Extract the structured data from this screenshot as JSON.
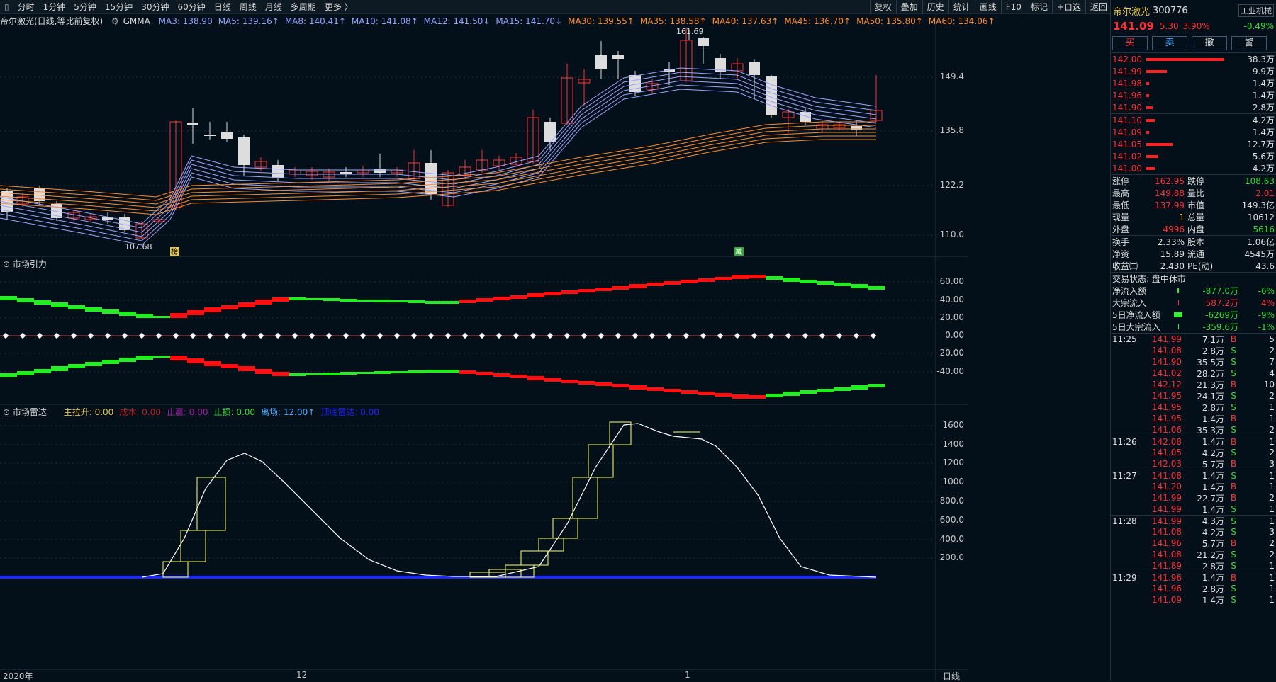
{
  "toolbar": {
    "timeframes": [
      "分时",
      "1分钟",
      "5分钟",
      "15分钟",
      "30分钟",
      "60分钟",
      "日线",
      "周线",
      "月线",
      "多周期",
      "更多 〉"
    ],
    "right_buttons": [
      "复权",
      "叠加",
      "历史",
      "统计",
      "画线",
      "F10",
      "标记",
      "+自选",
      "返回"
    ]
  },
  "legend": {
    "title": "帝尔激光(日线,等比前复权)",
    "indicator": "GMMA",
    "ma": [
      {
        "label": "MA3: 138.90",
        "color": "#8fa4ff"
      },
      {
        "label": "MA5: 139.16↑",
        "color": "#8fa4ff"
      },
      {
        "label": "MA8: 140.41↑",
        "color": "#8fa4ff"
      },
      {
        "label": "MA10: 141.08↑",
        "color": "#8fa4ff"
      },
      {
        "label": "MA12: 141.50↓",
        "color": "#8fa4ff"
      },
      {
        "label": "MA15: 141.70↓",
        "color": "#8fa4ff"
      },
      {
        "label": "MA30: 139.55↑",
        "color": "#ff8c2a"
      },
      {
        "label": "MA35: 138.58↑",
        "color": "#ff8c2a"
      },
      {
        "label": "MA40: 137.63↑",
        "color": "#ff8c2a"
      },
      {
        "label": "MA45: 136.70↑",
        "color": "#ff8c2a"
      },
      {
        "label": "MA50: 135.80↑",
        "color": "#ff8c2a"
      },
      {
        "label": "MA60: 134.06↑",
        "color": "#ff8c2a"
      }
    ]
  },
  "main_chart": {
    "y_ticks": [
      "149.4",
      "135.8",
      "122.2",
      "110.0"
    ],
    "high_label": "161.69",
    "low_label": "107.68",
    "marker_a": "榜",
    "marker_b": "减"
  },
  "panel2": {
    "title": "市场引力",
    "y_ticks": [
      "60.00",
      "40.00",
      "20.00",
      "0.00",
      "-20.00",
      "-40.00"
    ]
  },
  "panel3": {
    "title": "市场雷达",
    "items": [
      {
        "label": "主拉升: 0.00",
        "color": "#e6c44a"
      },
      {
        "label": "成本: 0.00",
        "color": "#b22222"
      },
      {
        "label": "止赢: 0.00",
        "color": "#a020a0"
      },
      {
        "label": "止损: 0.00",
        "color": "#33dd33"
      },
      {
        "label": "离场: 12.00↑",
        "color": "#4aa8ff"
      },
      {
        "label": "顶底雷达: 0.00",
        "color": "#2222ff"
      }
    ],
    "y_ticks": [
      "1600",
      "1400",
      "1200",
      "1000",
      "800.0",
      "600.0",
      "400.0",
      "200.0"
    ]
  },
  "xaxis": {
    "labels": [
      "2020年",
      "12",
      "1"
    ],
    "period": "日线"
  },
  "quote": {
    "name": "帝尔激光",
    "code": "300776",
    "sector": "工业机械",
    "price": "141.09",
    "change": "5.30",
    "pct": "3.90%",
    "sector_pct": "-0.49%",
    "buttons": [
      "买",
      "卖",
      "撤",
      "警"
    ],
    "asks": [
      {
        "p": "142.00",
        "v": "38.3万",
        "bar": 100
      },
      {
        "p": "141.99",
        "v": "9.9万",
        "bar": 26
      },
      {
        "p": "141.98",
        "v": "1.4万",
        "bar": 4
      },
      {
        "p": "141.96",
        "v": "1.4万",
        "bar": 4
      },
      {
        "p": "141.90",
        "v": "2.8万",
        "bar": 8
      }
    ],
    "bids": [
      {
        "p": "141.10",
        "v": "4.2万",
        "bar": 11
      },
      {
        "p": "141.09",
        "v": "1.4万",
        "bar": 4
      },
      {
        "p": "141.05",
        "v": "12.7万",
        "bar": 34
      },
      {
        "p": "141.02",
        "v": "5.6万",
        "bar": 15
      },
      {
        "p": "141.00",
        "v": "4.2万",
        "bar": 11
      }
    ],
    "stats": [
      [
        "涨停",
        "162.95",
        "red",
        "跌停",
        "108.63",
        "green"
      ],
      [
        "最高",
        "149.88",
        "red",
        "量比",
        "2.01",
        "red"
      ],
      [
        "最低",
        "137.99",
        "red",
        "市值",
        "149.3亿",
        "white"
      ],
      [
        "现量",
        "1",
        "yellow",
        "总量",
        "10612",
        "white"
      ],
      [
        "外盘",
        "4996",
        "red",
        "内盘",
        "5616",
        "green"
      ]
    ],
    "stats2": [
      [
        "换手",
        "2.33%",
        "股本",
        "1.06亿"
      ],
      [
        "净资",
        "15.89",
        "流通",
        "4545万"
      ],
      [
        "收益㈢",
        "2.430",
        "PE(动)",
        "43.6"
      ]
    ],
    "trade_status": "交易状态: 盘中休市",
    "flows": [
      {
        "label": "净流入额",
        "val": "-877.0万",
        "pct": "-6%",
        "c": "green",
        "bar": 2
      },
      {
        "label": "大宗流入",
        "val": "587.2万",
        "pct": "4%",
        "c": "red",
        "bar": 1
      },
      {
        "label": "5日净流入额",
        "val": "-6269万",
        "pct": "-9%",
        "c": "green",
        "bar": 12
      },
      {
        "label": "5日大宗流入",
        "val": "-359.6万",
        "pct": "-1%",
        "c": "green",
        "bar": 1
      }
    ],
    "ticks": [
      {
        "t": "11:25",
        "p": "141.99",
        "v": "7.1万",
        "bs": "B",
        "n": "5"
      },
      {
        "t": "",
        "p": "141.08",
        "v": "2.8万",
        "bs": "S",
        "n": "2"
      },
      {
        "t": "",
        "p": "141.90",
        "v": "35.5万",
        "bs": "S",
        "n": "7"
      },
      {
        "t": "",
        "p": "141.02",
        "v": "28.2万",
        "bs": "S",
        "n": "4"
      },
      {
        "t": "",
        "p": "142.12",
        "v": "21.3万",
        "bs": "B",
        "n": "10"
      },
      {
        "t": "",
        "p": "141.95",
        "v": "24.1万",
        "bs": "S",
        "n": "2"
      },
      {
        "t": "",
        "p": "141.95",
        "v": "2.8万",
        "bs": "S",
        "n": "1"
      },
      {
        "t": "",
        "p": "141.95",
        "v": "1.4万",
        "bs": "B",
        "n": "1"
      },
      {
        "t": "",
        "p": "141.06",
        "v": "35.3万",
        "bs": "S",
        "n": "2"
      },
      {
        "t": "11:26",
        "p": "142.08",
        "v": "1.4万",
        "bs": "B",
        "n": "1"
      },
      {
        "t": "",
        "p": "141.05",
        "v": "4.2万",
        "bs": "S",
        "n": "2"
      },
      {
        "t": "",
        "p": "142.03",
        "v": "5.7万",
        "bs": "B",
        "n": "3"
      },
      {
        "t": "11:27",
        "p": "141.08",
        "v": "1.4万",
        "bs": "S",
        "n": "1"
      },
      {
        "t": "",
        "p": "141.20",
        "v": "1.4万",
        "bs": "B",
        "n": "1"
      },
      {
        "t": "",
        "p": "141.99",
        "v": "22.7万",
        "bs": "B",
        "n": "2"
      },
      {
        "t": "",
        "p": "141.99",
        "v": "1.4万",
        "bs": "S",
        "n": "1"
      },
      {
        "t": "11:28",
        "p": "141.99",
        "v": "4.3万",
        "bs": "S",
        "n": "1"
      },
      {
        "t": "",
        "p": "141.08",
        "v": "4.2万",
        "bs": "S",
        "n": "3"
      },
      {
        "t": "",
        "p": "141.96",
        "v": "5.7万",
        "bs": "B",
        "n": "2"
      },
      {
        "t": "",
        "p": "141.08",
        "v": "21.2万",
        "bs": "S",
        "n": "2"
      },
      {
        "t": "",
        "p": "141.89",
        "v": "2.8万",
        "bs": "S",
        "n": "1"
      },
      {
        "t": "11:29",
        "p": "141.96",
        "v": "1.4万",
        "bs": "B",
        "n": "1"
      },
      {
        "t": "",
        "p": "141.96",
        "v": "2.8万",
        "bs": "S",
        "n": "1"
      },
      {
        "t": "",
        "p": "141.09",
        "v": "1.4万",
        "bs": "S",
        "n": "1"
      }
    ]
  },
  "colors": {
    "up": "#ff3333",
    "down": "#dddddd",
    "green": "#33ee33",
    "bg": "#03101a"
  }
}
